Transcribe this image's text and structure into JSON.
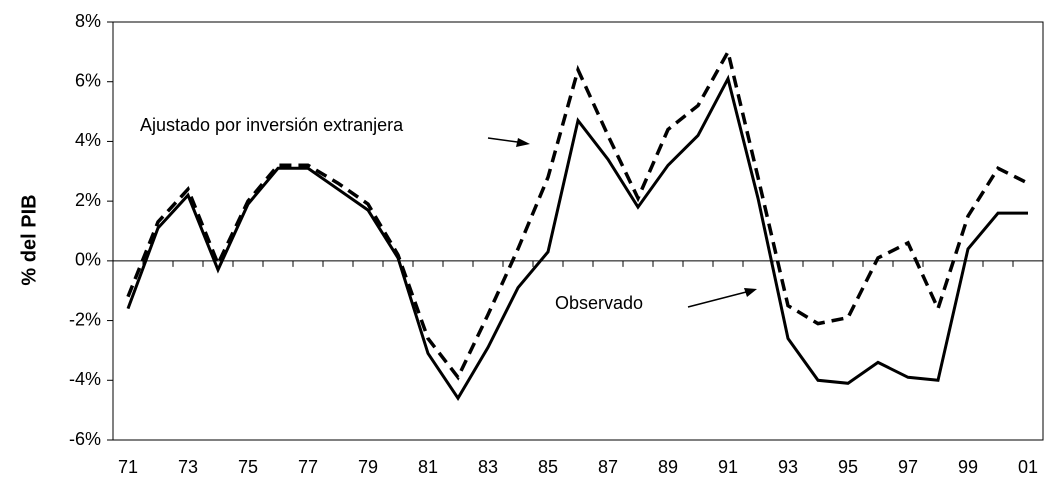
{
  "chart_data": {
    "type": "line",
    "y_label": "% del PIB",
    "categories": [
      "71",
      null,
      "73",
      null,
      "75",
      null,
      "77",
      null,
      "79",
      null,
      "81",
      null,
      "83",
      null,
      "85",
      null,
      "87",
      null,
      "89",
      null,
      "91",
      null,
      "93",
      null,
      "95",
      null,
      "97",
      null,
      "99",
      null,
      "01"
    ],
    "series": [
      {
        "name": "Observado",
        "color": "#000000",
        "dash": false,
        "values": [
          -1.6,
          1.1,
          2.2,
          -0.3,
          1.9,
          3.1,
          3.1,
          2.4,
          1.7,
          0.1,
          -3.1,
          -4.6,
          -2.9,
          -0.9,
          0.3,
          4.7,
          3.4,
          1.8,
          3.2,
          4.2,
          6.1,
          2.1,
          -2.6,
          -4.0,
          -4.1,
          -3.4,
          -3.9,
          -4.0,
          0.4,
          1.6,
          1.6
        ]
      },
      {
        "name": "Ajustado por inversión extranjera",
        "color": "#000000",
        "dash": true,
        "values": [
          -1.2,
          1.3,
          2.4,
          -0.1,
          2.0,
          3.2,
          3.2,
          2.6,
          1.9,
          0.2,
          -2.6,
          -3.9,
          -1.8,
          0.4,
          2.8,
          6.4,
          4.2,
          2.1,
          4.4,
          5.2,
          7.0,
          2.8,
          -1.5,
          -2.1,
          -1.9,
          0.1,
          0.6,
          -1.6,
          1.5,
          3.1,
          2.6
        ]
      }
    ],
    "ylim": [
      -6,
      8
    ],
    "yticks": [
      {
        "value": -6,
        "label": "-6%"
      },
      {
        "value": -4,
        "label": "-4%"
      },
      {
        "value": -2,
        "label": "-2%"
      },
      {
        "value": 0,
        "label": "0%"
      },
      {
        "value": 2,
        "label": "2%"
      },
      {
        "value": 4,
        "label": "4%"
      },
      {
        "value": 6,
        "label": "6%"
      },
      {
        "value": 8,
        "label": "8%"
      }
    ],
    "grid": false
  }
}
